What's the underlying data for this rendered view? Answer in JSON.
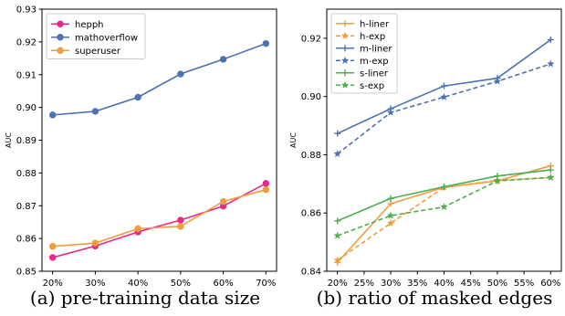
{
  "chart_data": [
    {
      "type": "line",
      "xlabel": "",
      "ylabel": "AUC",
      "categories": [
        "20%",
        "30%",
        "40%",
        "50%",
        "60%",
        "70%"
      ],
      "ylim": [
        0.85,
        0.93
      ],
      "yticks": [
        "0.85",
        "0.86",
        "0.87",
        "0.88",
        "0.89",
        "0.90",
        "0.91",
        "0.92",
        "0.93"
      ],
      "grid": false,
      "legend": "top-left",
      "caption": "(a) pre-training data size",
      "series": [
        {
          "name": "hepph",
          "color": "#e7298a",
          "marker": "circle",
          "dash": false,
          "values": [
            0.8542,
            0.8577,
            0.862,
            0.8656,
            0.8699,
            0.8768
          ]
        },
        {
          "name": "mathoverflow",
          "color": "#4c72b0",
          "marker": "circle",
          "dash": false,
          "values": [
            0.8977,
            0.8988,
            0.9031,
            0.9102,
            0.9147,
            0.9195
          ]
        },
        {
          "name": "superuser",
          "color": "#f39c3c",
          "marker": "circle",
          "dash": false,
          "values": [
            0.8576,
            0.8586,
            0.863,
            0.8637,
            0.8713,
            0.8749
          ]
        }
      ]
    },
    {
      "type": "line",
      "xlabel": "",
      "ylabel": "AUC",
      "x": [
        20,
        30,
        40,
        50,
        60
      ],
      "xlim": [
        18,
        62
      ],
      "xticks": [
        "20%",
        "25%",
        "30%",
        "35%",
        "40%",
        "45%",
        "50%",
        "55%",
        "60%"
      ],
      "ylim": [
        0.84,
        0.93
      ],
      "yticks": [
        "0.84",
        "0.86",
        "0.88",
        "0.90",
        "0.92"
      ],
      "grid": false,
      "legend": "top-left",
      "caption": "(b) ratio of masked edges",
      "series": [
        {
          "name": "h-liner",
          "color": "#f39c3c",
          "marker": "plus",
          "dash": false,
          "values": [
            0.843,
            0.8632,
            0.8688,
            0.871,
            0.8762
          ]
        },
        {
          "name": "h-exp",
          "color": "#f39c3c",
          "marker": "star",
          "dash": true,
          "values": [
            0.8438,
            0.8565,
            0.8688,
            0.8712,
            0.8722
          ]
        },
        {
          "name": "m-liner",
          "color": "#4c72b0",
          "marker": "plus",
          "dash": false,
          "values": [
            0.8873,
            0.8958,
            0.9036,
            0.9063,
            0.9195
          ]
        },
        {
          "name": "m-exp",
          "color": "#4c72b0",
          "marker": "star",
          "dash": true,
          "values": [
            0.8803,
            0.8945,
            0.8998,
            0.9052,
            0.9112
          ]
        },
        {
          "name": "s-liner",
          "color": "#4caf50",
          "marker": "plus",
          "dash": false,
          "values": [
            0.8573,
            0.865,
            0.869,
            0.8727,
            0.8748
          ]
        },
        {
          "name": "s-exp",
          "color": "#4caf50",
          "marker": "star",
          "dash": true,
          "values": [
            0.8522,
            0.8591,
            0.8621,
            0.871,
            0.8722
          ]
        }
      ]
    }
  ]
}
